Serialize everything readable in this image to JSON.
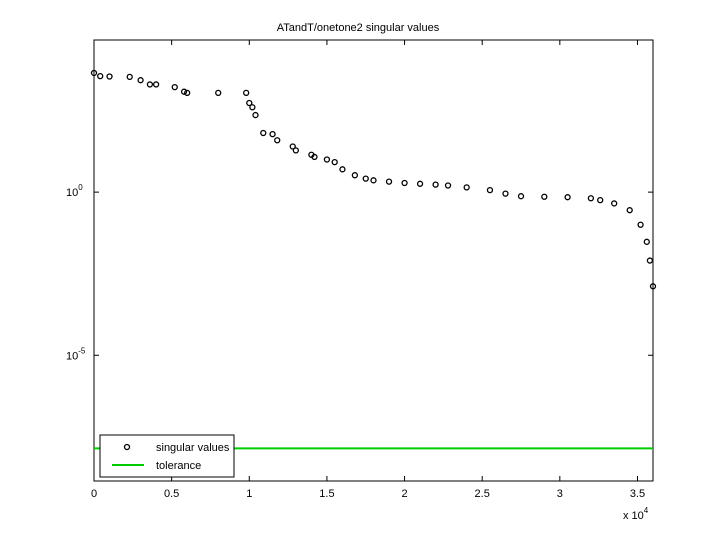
{
  "chart_data": {
    "type": "scatter",
    "title": "ATandT/onetone2 singular values",
    "yscale": "log",
    "xlim": [
      0,
      36000
    ],
    "ylim": [
      1.4e-09,
      46000
    ],
    "xticks": [
      0,
      {
        "value": 5000,
        "label": "0.5"
      },
      {
        "value": 10000,
        "label": "1"
      },
      {
        "value": 15000,
        "label": "1.5"
      },
      {
        "value": 20000,
        "label": "2"
      },
      {
        "value": 25000,
        "label": "2.5"
      },
      {
        "value": 30000,
        "label": "3"
      },
      {
        "value": 35000,
        "label": "3.5"
      }
    ],
    "x_multiplier": "x 10^4",
    "yticks": [
      {
        "value": 1e-05,
        "label": "10^-5"
      },
      {
        "value": 1,
        "label": "10^0"
      }
    ],
    "legend": "lower left",
    "series": [
      {
        "name": "singular values",
        "color": "#000000",
        "marker": "o",
        "x": [
          0,
          400,
          1000,
          2300,
          3000,
          3600,
          4000,
          5200,
          5800,
          6000,
          8000,
          9800,
          10000,
          10200,
          10400,
          10900,
          11500,
          11800,
          12800,
          13000,
          14000,
          14200,
          15000,
          15500,
          16000,
          16800,
          17500,
          18000,
          19000,
          20000,
          21000,
          22000,
          22800,
          24000,
          25500,
          26500,
          27500,
          29000,
          30500,
          32000,
          32600,
          33500,
          34500,
          35200,
          35600,
          35800,
          36000
        ],
        "values": [
          4500,
          3600,
          3500,
          3400,
          2700,
          2000,
          2000,
          1650,
          1200,
          1100,
          1100,
          1100,
          540,
          400,
          230,
          65,
          60,
          39,
          25,
          19,
          14,
          12,
          10,
          8.3,
          5,
          3.3,
          2.6,
          2.3,
          2.1,
          1.9,
          1.8,
          1.7,
          1.6,
          1.4,
          1.15,
          0.9,
          0.75,
          0.72,
          0.7,
          0.65,
          0.57,
          0.45,
          0.28,
          0.1,
          0.03,
          0.008,
          0.0013
        ]
      },
      {
        "name": "tolerance",
        "color": "#00cc00",
        "marker": "line",
        "x": [
          0,
          36000
        ],
        "values": [
          1.4e-08,
          1.4e-08
        ]
      }
    ]
  }
}
